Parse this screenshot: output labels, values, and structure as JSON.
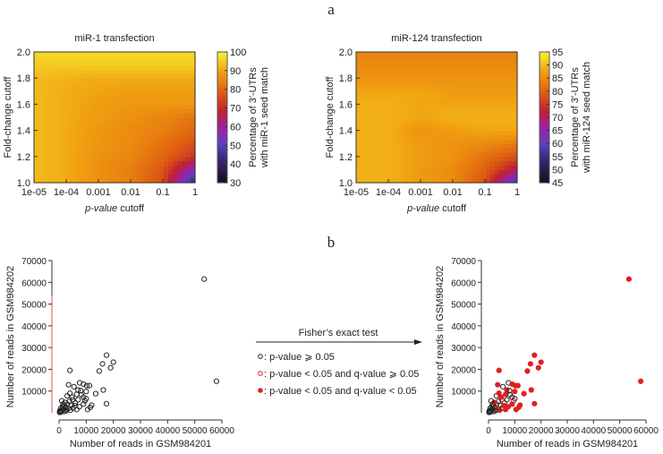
{
  "panels": {
    "a": "a",
    "b": "b"
  },
  "chart_data": [
    {
      "type": "heatmap",
      "title": "miR-1 transfection",
      "xlabel_italic": "p-value",
      "xlabel_rest": " cutoff",
      "ylabel": "Fold-change cutoff",
      "x_categories": [
        "1e-05",
        "1e-04",
        "0.001",
        "0.01",
        "0.1",
        "1"
      ],
      "y_ticks": [
        "1.0",
        "1.2",
        "1.4",
        "1.6",
        "1.8",
        "2.0"
      ],
      "y_values": [
        1.0,
        1.1,
        1.2,
        1.3,
        1.4,
        1.5,
        1.6,
        1.7,
        1.8,
        1.9,
        2.0
      ],
      "values": [
        [
          93,
          91,
          87,
          84,
          76,
          40
        ],
        [
          93,
          91,
          87,
          84,
          77,
          55
        ],
        [
          93,
          91,
          87,
          85,
          80,
          72
        ],
        [
          93,
          91,
          88,
          86,
          82,
          76
        ],
        [
          93,
          91,
          88,
          86,
          84,
          80
        ],
        [
          93,
          91,
          89,
          87,
          85,
          82
        ],
        [
          93,
          91,
          89,
          88,
          88,
          88
        ],
        [
          93,
          91,
          90,
          89,
          89,
          89
        ],
        [
          93,
          92,
          91,
          91,
          91,
          91
        ],
        [
          95,
          95,
          95,
          95,
          95,
          95
        ],
        [
          97,
          97,
          97,
          97,
          97,
          97
        ]
      ],
      "colorbar": {
        "range": [
          30,
          100
        ],
        "ticks": [
          "30",
          "40",
          "50",
          "60",
          "70",
          "80",
          "90",
          "100"
        ],
        "label_1": "Percentage of 3′-UTRs",
        "label_2": "with miR-1 seed match"
      }
    },
    {
      "type": "heatmap",
      "title": "miR-124 transfection",
      "xlabel_italic": "p-value",
      "xlabel_rest": " cutoff",
      "ylabel": "Fold-change cutoff",
      "x_categories": [
        "1e-05",
        "1e-04",
        "0.001",
        "0.01",
        "0.1",
        "1"
      ],
      "y_ticks": [
        "1.0",
        "1.2",
        "1.4",
        "1.6",
        "1.8",
        "2.0"
      ],
      "y_values": [
        1.0,
        1.1,
        1.2,
        1.3,
        1.4,
        1.5,
        1.6,
        1.7,
        1.8,
        1.9,
        2.0
      ],
      "values": [
        [
          89,
          89,
          87,
          85,
          78,
          55
        ],
        [
          89,
          89,
          87,
          85,
          80,
          70
        ],
        [
          89,
          89,
          87,
          86,
          82,
          78
        ],
        [
          89,
          89,
          87,
          86,
          85,
          83
        ],
        [
          89,
          89,
          86,
          87,
          88,
          88
        ],
        [
          89,
          89,
          88,
          89,
          89,
          89
        ],
        [
          89,
          89,
          88,
          88,
          88,
          88
        ],
        [
          88,
          88,
          88,
          87,
          87,
          87
        ],
        [
          86,
          86,
          86,
          86,
          86,
          86
        ],
        [
          85,
          85,
          85,
          85,
          85,
          85
        ],
        [
          84,
          84,
          84,
          84,
          84,
          84
        ]
      ],
      "colorbar": {
        "range": [
          45,
          95
        ],
        "ticks": [
          "45",
          "50",
          "55",
          "60",
          "65",
          "70",
          "75",
          "80",
          "85",
          "90",
          "95"
        ],
        "label_1": "Percentage of 3′-UTRs",
        "label_2": "with miR-124 seed match"
      }
    },
    {
      "type": "scatter",
      "xlabel": "Number of reads in GSM984201",
      "ylabel": "Number of reads in GSM984202",
      "xlim": [
        0,
        60000
      ],
      "ylim": [
        0,
        70000
      ],
      "x_ticks": [
        "0",
        "10000",
        "20000",
        "30000",
        "40000",
        "50000",
        "60000"
      ],
      "y_ticks": [
        "10000",
        "20000",
        "30000",
        "40000",
        "50000",
        "60000",
        "70000"
      ],
      "arrow_label": "Fisher’s exact test",
      "legend": [
        {
          "text": ": p-value ⩾ 0.05",
          "color": "#222222",
          "filled": false
        },
        {
          "text": ": p-value < 0.05 and q-value ⩾ 0.05",
          "color": "#e02020",
          "filled": false
        },
        {
          "text": ": p-value < 0.05 and q-value < 0.05",
          "color": "#e02020",
          "filled": true
        }
      ],
      "points": [
        [
          53500,
          61500,
          2
        ],
        [
          58000,
          14500,
          2
        ],
        [
          17500,
          26500,
          2
        ],
        [
          20000,
          23300,
          2
        ],
        [
          16000,
          22500,
          2
        ],
        [
          19000,
          20700,
          2
        ],
        [
          14800,
          19200,
          2
        ],
        [
          4000,
          19500,
          2
        ],
        [
          16300,
          10500,
          2
        ],
        [
          13500,
          8800,
          2
        ],
        [
          17500,
          4200,
          2
        ],
        [
          7600,
          13800,
          0
        ],
        [
          9000,
          13200,
          2
        ],
        [
          10200,
          12500,
          2
        ],
        [
          11200,
          12500,
          2
        ],
        [
          3500,
          12900,
          2
        ],
        [
          5500,
          12000,
          0
        ],
        [
          7000,
          10500,
          2
        ],
        [
          8000,
          10200,
          0
        ],
        [
          10000,
          9800,
          2
        ],
        [
          6500,
          8500,
          2
        ],
        [
          9000,
          7200,
          0
        ],
        [
          10500,
          1500,
          2
        ],
        [
          11500,
          2500,
          2
        ],
        [
          12000,
          3500,
          2
        ],
        [
          9500,
          5500,
          1
        ],
        [
          10000,
          6500,
          0
        ],
        [
          7500,
          2800,
          2
        ],
        [
          6000,
          4500,
          0
        ],
        [
          5000,
          6000,
          1
        ],
        [
          4500,
          3500,
          0
        ],
        [
          3800,
          5200,
          0
        ],
        [
          3000,
          4000,
          0
        ],
        [
          2500,
          2500,
          0
        ],
        [
          2000,
          3200,
          0
        ],
        [
          1500,
          1800,
          0
        ],
        [
          1000,
          1200,
          0
        ],
        [
          800,
          600,
          0
        ],
        [
          500,
          300,
          0
        ],
        [
          300,
          900,
          0
        ],
        [
          1800,
          600,
          0
        ],
        [
          2800,
          1500,
          0
        ],
        [
          3500,
          2000,
          1
        ],
        [
          4200,
          1200,
          2
        ],
        [
          5200,
          2200,
          0
        ],
        [
          600,
          2000,
          0
        ],
        [
          1200,
          2800,
          0
        ],
        [
          2200,
          4800,
          2
        ],
        [
          4800,
          7200,
          2
        ],
        [
          3000,
          7800,
          0
        ],
        [
          6500,
          1500,
          2
        ],
        [
          8200,
          8300,
          0
        ],
        [
          1500,
          4000,
          0
        ],
        [
          200,
          200,
          0
        ],
        [
          2600,
          900,
          0
        ],
        [
          5800,
          3300,
          2
        ],
        [
          7000,
          6000,
          0
        ],
        [
          4000,
          9000,
          2
        ],
        [
          9000,
          4000,
          2
        ],
        [
          1000,
          5500,
          0
        ]
      ]
    }
  ]
}
